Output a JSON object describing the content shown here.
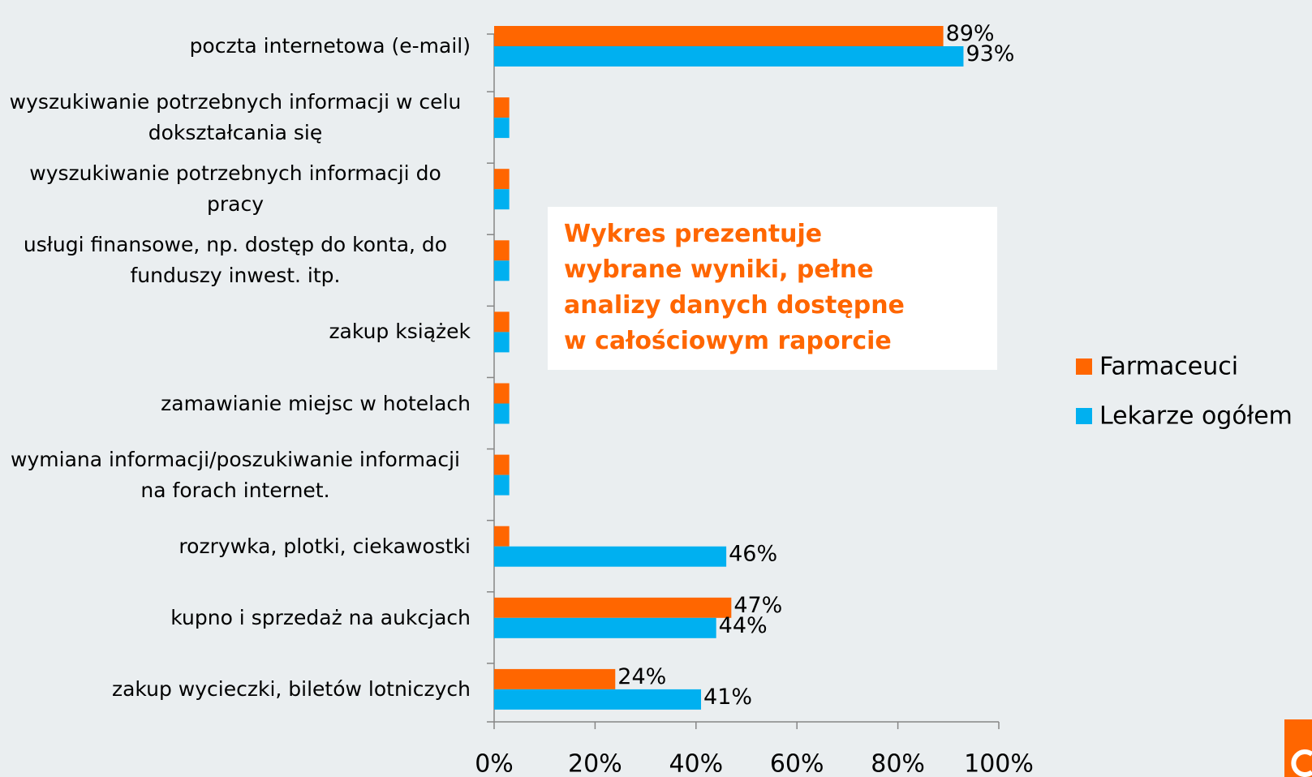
{
  "chart_data": {
    "type": "hbar",
    "categories": [
      "poczta internetowa (e-mail)",
      "wyszukiwanie potrzebnych informacji w celu dokształcania się",
      "wyszukiwanie potrzebnych informacji do pracy",
      "usługi finansowe, np. dostęp do konta, do funduszy inwest. itp.",
      "zakup książek",
      "zamawianie miejsc w hotelach",
      "wymiana informacji/poszukiwanie informacji na forach internet.",
      "rozrywka, plotki, ciekawostki",
      "kupno i sprzedaż na aukcjach",
      "zakup wycieczki, biletów lotniczych"
    ],
    "series": [
      {
        "name": "Farmaceuci",
        "color": "#ff6600",
        "values": [
          89,
          3,
          3,
          3,
          3,
          3,
          3,
          3,
          47,
          24
        ],
        "value_labels": [
          "89%",
          null,
          null,
          null,
          null,
          null,
          null,
          null,
          "47%",
          "24%"
        ]
      },
      {
        "name": "Lekarze ogółem",
        "color": "#00b0f0",
        "values": [
          93,
          3,
          3,
          3,
          3,
          3,
          3,
          46,
          44,
          41
        ],
        "value_labels": [
          "93%",
          null,
          null,
          null,
          null,
          null,
          null,
          "46%",
          "44%",
          "41%"
        ]
      }
    ],
    "xlim": [
      0,
      100
    ],
    "xticks": [
      {
        "value": 0,
        "label": "0%"
      },
      {
        "value": 20,
        "label": "20%"
      },
      {
        "value": 40,
        "label": "40%"
      },
      {
        "value": 60,
        "label": "60%"
      },
      {
        "value": 80,
        "label": "80%"
      },
      {
        "value": 100,
        "label": "100%"
      }
    ],
    "legend": "right",
    "annotation": [
      "Wykres prezentuje",
      "wybrane wyniki, pełne",
      "analizy danych dostępne",
      "w całościowym raporcie"
    ]
  }
}
